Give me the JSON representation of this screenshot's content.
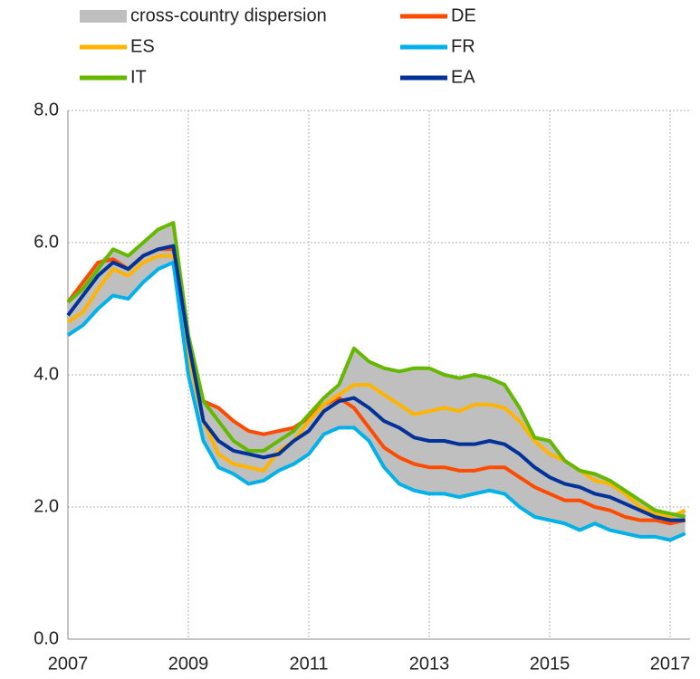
{
  "chart_data": {
    "type": "line",
    "x": [
      2007,
      2007.25,
      2007.5,
      2007.75,
      2008,
      2008.25,
      2008.5,
      2008.75,
      2009,
      2009.25,
      2009.5,
      2009.75,
      2010,
      2010.25,
      2010.5,
      2010.75,
      2011,
      2011.25,
      2011.5,
      2011.75,
      2012,
      2012.25,
      2012.5,
      2012.75,
      2013,
      2013.25,
      2013.5,
      2013.75,
      2014,
      2014.25,
      2014.5,
      2014.75,
      2015,
      2015.25,
      2015.5,
      2015.75,
      2016,
      2016.25,
      2016.5,
      2016.75,
      2017,
      2017.25
    ],
    "band": {
      "name": "cross-country dispersion",
      "color": "#bfbfbf",
      "lower": [
        4.6,
        4.75,
        5.0,
        5.2,
        5.15,
        5.4,
        5.6,
        5.7,
        4.0,
        3.0,
        2.6,
        2.5,
        2.35,
        2.4,
        2.55,
        2.65,
        2.8,
        3.1,
        3.2,
        3.2,
        3.0,
        2.6,
        2.35,
        2.25,
        2.2,
        2.2,
        2.15,
        2.2,
        2.25,
        2.2,
        2.0,
        1.85,
        1.8,
        1.75,
        1.65,
        1.75,
        1.65,
        1.6,
        1.55,
        1.55,
        1.5,
        1.6
      ],
      "upper": [
        5.1,
        5.4,
        5.7,
        5.9,
        5.8,
        6.0,
        6.2,
        6.3,
        4.6,
        3.6,
        3.5,
        3.3,
        3.15,
        3.1,
        3.15,
        3.2,
        3.4,
        3.65,
        3.85,
        4.4,
        4.2,
        4.1,
        4.05,
        4.1,
        4.1,
        4.0,
        3.95,
        4.0,
        3.95,
        3.85,
        3.5,
        3.05,
        3.0,
        2.7,
        2.55,
        2.5,
        2.4,
        2.25,
        2.1,
        1.95,
        1.9,
        1.95
      ]
    },
    "series": [
      {
        "name": "DE",
        "color": "#ff4b00",
        "values": [
          5.1,
          5.4,
          5.7,
          5.75,
          5.6,
          5.8,
          5.9,
          5.9,
          4.4,
          3.6,
          3.5,
          3.3,
          3.15,
          3.1,
          3.15,
          3.2,
          3.35,
          3.55,
          3.65,
          3.5,
          3.2,
          2.9,
          2.75,
          2.65,
          2.6,
          2.6,
          2.55,
          2.55,
          2.6,
          2.6,
          2.45,
          2.3,
          2.2,
          2.1,
          2.1,
          2.0,
          1.95,
          1.85,
          1.8,
          1.8,
          1.75,
          1.8
        ]
      },
      {
        "name": "ES",
        "color": "#ffb400",
        "values": [
          4.8,
          4.95,
          5.3,
          5.6,
          5.5,
          5.7,
          5.8,
          5.8,
          4.3,
          3.3,
          2.8,
          2.65,
          2.6,
          2.55,
          2.85,
          3.0,
          3.3,
          3.55,
          3.7,
          3.85,
          3.85,
          3.7,
          3.55,
          3.4,
          3.45,
          3.5,
          3.45,
          3.55,
          3.55,
          3.5,
          3.3,
          3.0,
          2.8,
          2.7,
          2.55,
          2.4,
          2.35,
          2.2,
          2.0,
          1.9,
          1.85,
          1.95
        ]
      },
      {
        "name": "FR",
        "color": "#00b1ea",
        "values": [
          4.6,
          4.75,
          5.0,
          5.2,
          5.15,
          5.4,
          5.6,
          5.7,
          4.0,
          3.0,
          2.6,
          2.5,
          2.35,
          2.4,
          2.55,
          2.65,
          2.8,
          3.1,
          3.2,
          3.2,
          3.0,
          2.6,
          2.35,
          2.25,
          2.2,
          2.2,
          2.15,
          2.2,
          2.25,
          2.2,
          2.0,
          1.85,
          1.8,
          1.75,
          1.65,
          1.75,
          1.65,
          1.6,
          1.55,
          1.55,
          1.5,
          1.6
        ]
      },
      {
        "name": "IT",
        "color": "#65b800",
        "values": [
          5.1,
          5.3,
          5.6,
          5.9,
          5.8,
          6.0,
          6.2,
          6.3,
          4.6,
          3.6,
          3.3,
          3.0,
          2.85,
          2.85,
          3.0,
          3.15,
          3.4,
          3.65,
          3.85,
          4.4,
          4.2,
          4.1,
          4.05,
          4.1,
          4.1,
          4.0,
          3.95,
          4.0,
          3.95,
          3.85,
          3.5,
          3.05,
          3.0,
          2.7,
          2.55,
          2.5,
          2.4,
          2.25,
          2.1,
          1.95,
          1.9,
          1.85
        ]
      },
      {
        "name": "EA",
        "color": "#003299",
        "values": [
          4.9,
          5.2,
          5.5,
          5.7,
          5.6,
          5.8,
          5.9,
          5.95,
          4.5,
          3.3,
          3.0,
          2.85,
          2.8,
          2.75,
          2.8,
          3.0,
          3.15,
          3.45,
          3.6,
          3.65,
          3.5,
          3.3,
          3.2,
          3.05,
          3.0,
          3.0,
          2.95,
          2.95,
          3.0,
          2.95,
          2.8,
          2.6,
          2.45,
          2.35,
          2.3,
          2.2,
          2.15,
          2.05,
          1.95,
          1.85,
          1.8,
          1.8
        ]
      }
    ],
    "xlim": [
      2007,
      2017.33
    ],
    "xticks": [
      2007,
      2009,
      2011,
      2013,
      2015,
      2017
    ],
    "ylim": [
      0,
      8
    ],
    "yticks": [
      {
        "value": 0,
        "label": "0.0"
      },
      {
        "value": 2,
        "label": "2.0"
      },
      {
        "value": 4,
        "label": "4.0"
      },
      {
        "value": 6,
        "label": "6.0"
      },
      {
        "value": 8,
        "label": "8.0"
      }
    ],
    "grid": true
  }
}
